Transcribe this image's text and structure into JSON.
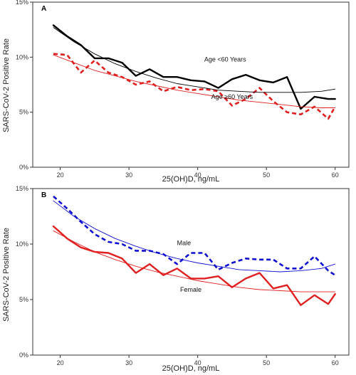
{
  "ylabel": "SARS-CoV-2 Positive Rate",
  "chart_data": [
    {
      "type": "line",
      "panel_label": "A",
      "xlabel": "25(OH)D, ng/mL",
      "ylabel": "SARS-CoV-2 Positive Rate",
      "xlim": [
        16,
        62
      ],
      "ylim": [
        0,
        15
      ],
      "xticks": [
        20,
        30,
        40,
        50,
        60
      ],
      "xtick_labels": [
        "20",
        "30",
        "40",
        "50",
        "60"
      ],
      "yticks": [
        0,
        5,
        10,
        15
      ],
      "ytick_labels": [
        "0%",
        "5%",
        "10%",
        "15%"
      ],
      "grid": false,
      "annotations": [
        {
          "text": "Age <60 Years",
          "x": 44,
          "y": 9.6
        },
        {
          "text": "Age ≥60 Years",
          "x": 45,
          "y": 6.2
        }
      ],
      "series": [
        {
          "name": "Age <60 Years",
          "style": "solid",
          "color": "#000000",
          "x": [
            19,
            21,
            23,
            25,
            27,
            29,
            31,
            33,
            35,
            37,
            39,
            41,
            43,
            45,
            47,
            49,
            51,
            53,
            55,
            57,
            59,
            60
          ],
          "y": [
            12.9,
            11.9,
            11.1,
            9.9,
            9.9,
            9.5,
            8.3,
            8.9,
            8.2,
            8.2,
            7.9,
            7.8,
            7.2,
            8.0,
            8.4,
            7.9,
            7.7,
            8.2,
            5.3,
            6.4,
            6.2,
            6.2
          ]
        },
        {
          "name": "Age ≥60 Years",
          "style": "dashed",
          "color": "#e02020",
          "x": [
            19,
            21,
            23,
            25,
            27,
            29,
            31,
            33,
            35,
            37,
            39,
            41,
            43,
            45,
            47,
            49,
            51,
            53,
            55,
            57,
            59,
            60
          ],
          "y": [
            10.3,
            10.2,
            8.6,
            9.7,
            8.6,
            8.2,
            7.5,
            7.8,
            6.9,
            7.3,
            7.0,
            7.1,
            6.9,
            5.6,
            6.2,
            7.2,
            6.0,
            5.0,
            4.8,
            5.5,
            4.4,
            5.5
          ]
        },
        {
          "name": "Age <60 Years fit",
          "style": "thin",
          "color": "#000000",
          "x": [
            19,
            22,
            25,
            28,
            31,
            34,
            37,
            40,
            43,
            46,
            49,
            52,
            55,
            58,
            60
          ],
          "y": [
            12.7,
            11.4,
            10.3,
            9.4,
            8.7,
            8.1,
            7.6,
            7.3,
            7.0,
            6.9,
            6.8,
            6.8,
            6.8,
            6.9,
            7.1
          ]
        },
        {
          "name": "Age ≥60 Years fit",
          "style": "thin",
          "color": "#e02020",
          "x": [
            19,
            22,
            25,
            28,
            31,
            34,
            37,
            40,
            43,
            46,
            49,
            52,
            55,
            58,
            60
          ],
          "y": [
            10.2,
            9.5,
            8.8,
            8.3,
            7.8,
            7.4,
            7.0,
            6.7,
            6.4,
            6.1,
            5.9,
            5.7,
            5.5,
            5.4,
            5.4
          ]
        }
      ]
    },
    {
      "type": "line",
      "panel_label": "B",
      "xlabel": "25(OH)D, ng/mL",
      "ylabel": "SARS-CoV-2 Positive Rate",
      "xlim": [
        16,
        62
      ],
      "ylim": [
        0,
        15
      ],
      "xticks": [
        20,
        30,
        40,
        50,
        60
      ],
      "xtick_labels": [
        "20",
        "30",
        "40",
        "50",
        "60"
      ],
      "yticks": [
        0,
        5,
        10,
        15
      ],
      "ytick_labels": [
        "0%",
        "5%",
        "10%",
        "15%"
      ],
      "grid": false,
      "annotations": [
        {
          "text": "Male",
          "x": 38,
          "y": 9.9
        },
        {
          "text": "Female",
          "x": 39,
          "y": 5.7
        }
      ],
      "series": [
        {
          "name": "Male",
          "style": "dashed",
          "color": "#1010d0",
          "x": [
            19,
            21,
            23,
            25,
            27,
            29,
            31,
            33,
            35,
            37,
            39,
            41,
            43,
            45,
            47,
            49,
            51,
            53,
            55,
            57,
            59,
            60
          ],
          "y": [
            14.3,
            13.2,
            12.0,
            10.9,
            10.2,
            10.0,
            9.4,
            9.4,
            9.1,
            8.2,
            9.2,
            9.2,
            7.7,
            8.3,
            8.7,
            8.6,
            8.6,
            7.8,
            7.8,
            8.9,
            7.6,
            7.2
          ]
        },
        {
          "name": "Female",
          "style": "solid",
          "color": "#e02020",
          "x": [
            19,
            21,
            23,
            25,
            27,
            29,
            31,
            33,
            35,
            37,
            39,
            41,
            43,
            45,
            47,
            49,
            51,
            53,
            55,
            57,
            59,
            60
          ],
          "y": [
            11.6,
            10.5,
            9.7,
            9.3,
            9.2,
            8.7,
            7.4,
            8.2,
            7.2,
            7.8,
            6.9,
            6.9,
            7.1,
            6.1,
            6.9,
            7.4,
            6.0,
            6.3,
            4.5,
            5.4,
            4.6,
            5.5
          ]
        },
        {
          "name": "Male fit",
          "style": "thin",
          "color": "#1010d0",
          "x": [
            19,
            22,
            25,
            28,
            31,
            34,
            37,
            40,
            43,
            46,
            49,
            52,
            55,
            58,
            60
          ],
          "y": [
            13.9,
            12.5,
            11.4,
            10.5,
            9.8,
            9.2,
            8.7,
            8.3,
            8.0,
            7.7,
            7.6,
            7.5,
            7.6,
            7.8,
            8.2
          ]
        },
        {
          "name": "Female fit",
          "style": "thin",
          "color": "#e02020",
          "x": [
            19,
            22,
            25,
            28,
            31,
            34,
            37,
            40,
            43,
            46,
            49,
            52,
            55,
            58,
            60
          ],
          "y": [
            11.2,
            10.2,
            9.3,
            8.6,
            8.0,
            7.5,
            7.1,
            6.7,
            6.4,
            6.1,
            5.9,
            5.8,
            5.7,
            5.7,
            5.7
          ]
        }
      ]
    }
  ]
}
